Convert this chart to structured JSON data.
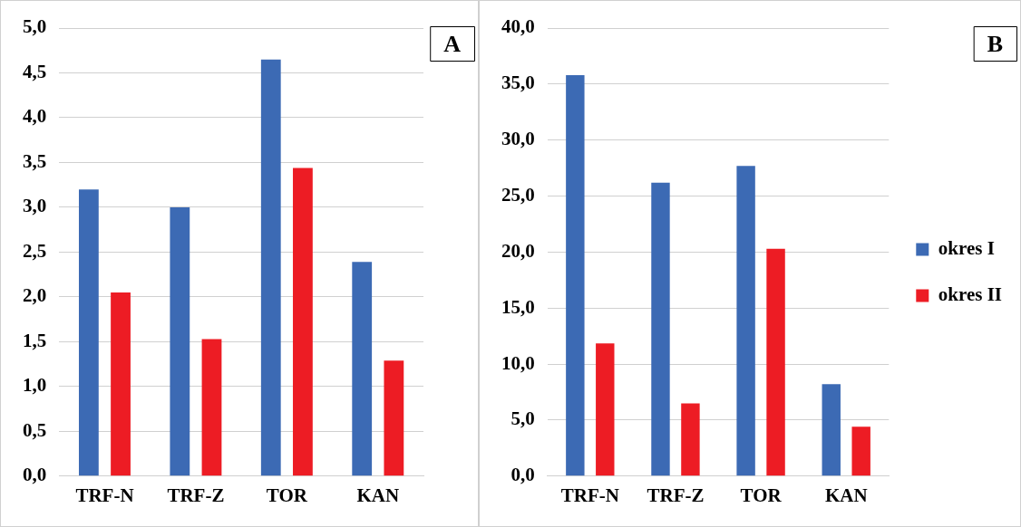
{
  "chart_data": [
    {
      "type": "bar",
      "categories": [
        "TRF-N",
        "TRF-Z",
        "TOR",
        "KAN"
      ],
      "series": [
        {
          "color": "#3c6ab4",
          "values": [
            3.2,
            3.0,
            4.65,
            2.39
          ]
        },
        {
          "color": "#ed1c24",
          "values": [
            2.05,
            1.53,
            3.44,
            1.29
          ]
        }
      ],
      "ylim": [
        0,
        5
      ],
      "yticks": [
        {
          "value": 0,
          "label": "0,0"
        },
        {
          "value": 0.5,
          "label": "0,5"
        },
        {
          "value": 1,
          "label": "1,0"
        },
        {
          "value": 1.5,
          "label": "1,5"
        },
        {
          "value": 2,
          "label": "2,0"
        },
        {
          "value": 2.5,
          "label": "2,5"
        },
        {
          "value": 3,
          "label": "3,0"
        },
        {
          "value": 3.5,
          "label": "3,5"
        },
        {
          "value": 4,
          "label": "4,0"
        },
        {
          "value": 4.5,
          "label": "4,5"
        },
        {
          "value": 5,
          "label": "5,0"
        }
      ],
      "grid": "y",
      "legend": false,
      "annotations": [
        "A"
      ]
    },
    {
      "type": "bar",
      "categories": [
        "TRF-N",
        "TRF-Z",
        "TOR",
        "KAN"
      ],
      "series": [
        {
          "name": "okres I",
          "color": "#3c6ab4",
          "values": [
            35.8,
            26.2,
            27.7,
            8.2
          ]
        },
        {
          "name": "okres II",
          "color": "#ed1c24",
          "values": [
            11.85,
            6.5,
            20.3,
            4.4
          ]
        }
      ],
      "ylim": [
        0,
        40
      ],
      "yticks": [
        {
          "value": 0,
          "label": "0,0"
        },
        {
          "value": 5,
          "label": "5,0"
        },
        {
          "value": 10,
          "label": "10,0"
        },
        {
          "value": 15,
          "label": "15,0"
        },
        {
          "value": 20,
          "label": "20,0"
        },
        {
          "value": 25,
          "label": "25,0"
        },
        {
          "value": 30,
          "label": "30,0"
        },
        {
          "value": 35,
          "label": "35,0"
        },
        {
          "value": 40,
          "label": "40,0"
        }
      ],
      "grid": "y",
      "legend": "right",
      "annotations": [
        "B"
      ]
    }
  ]
}
